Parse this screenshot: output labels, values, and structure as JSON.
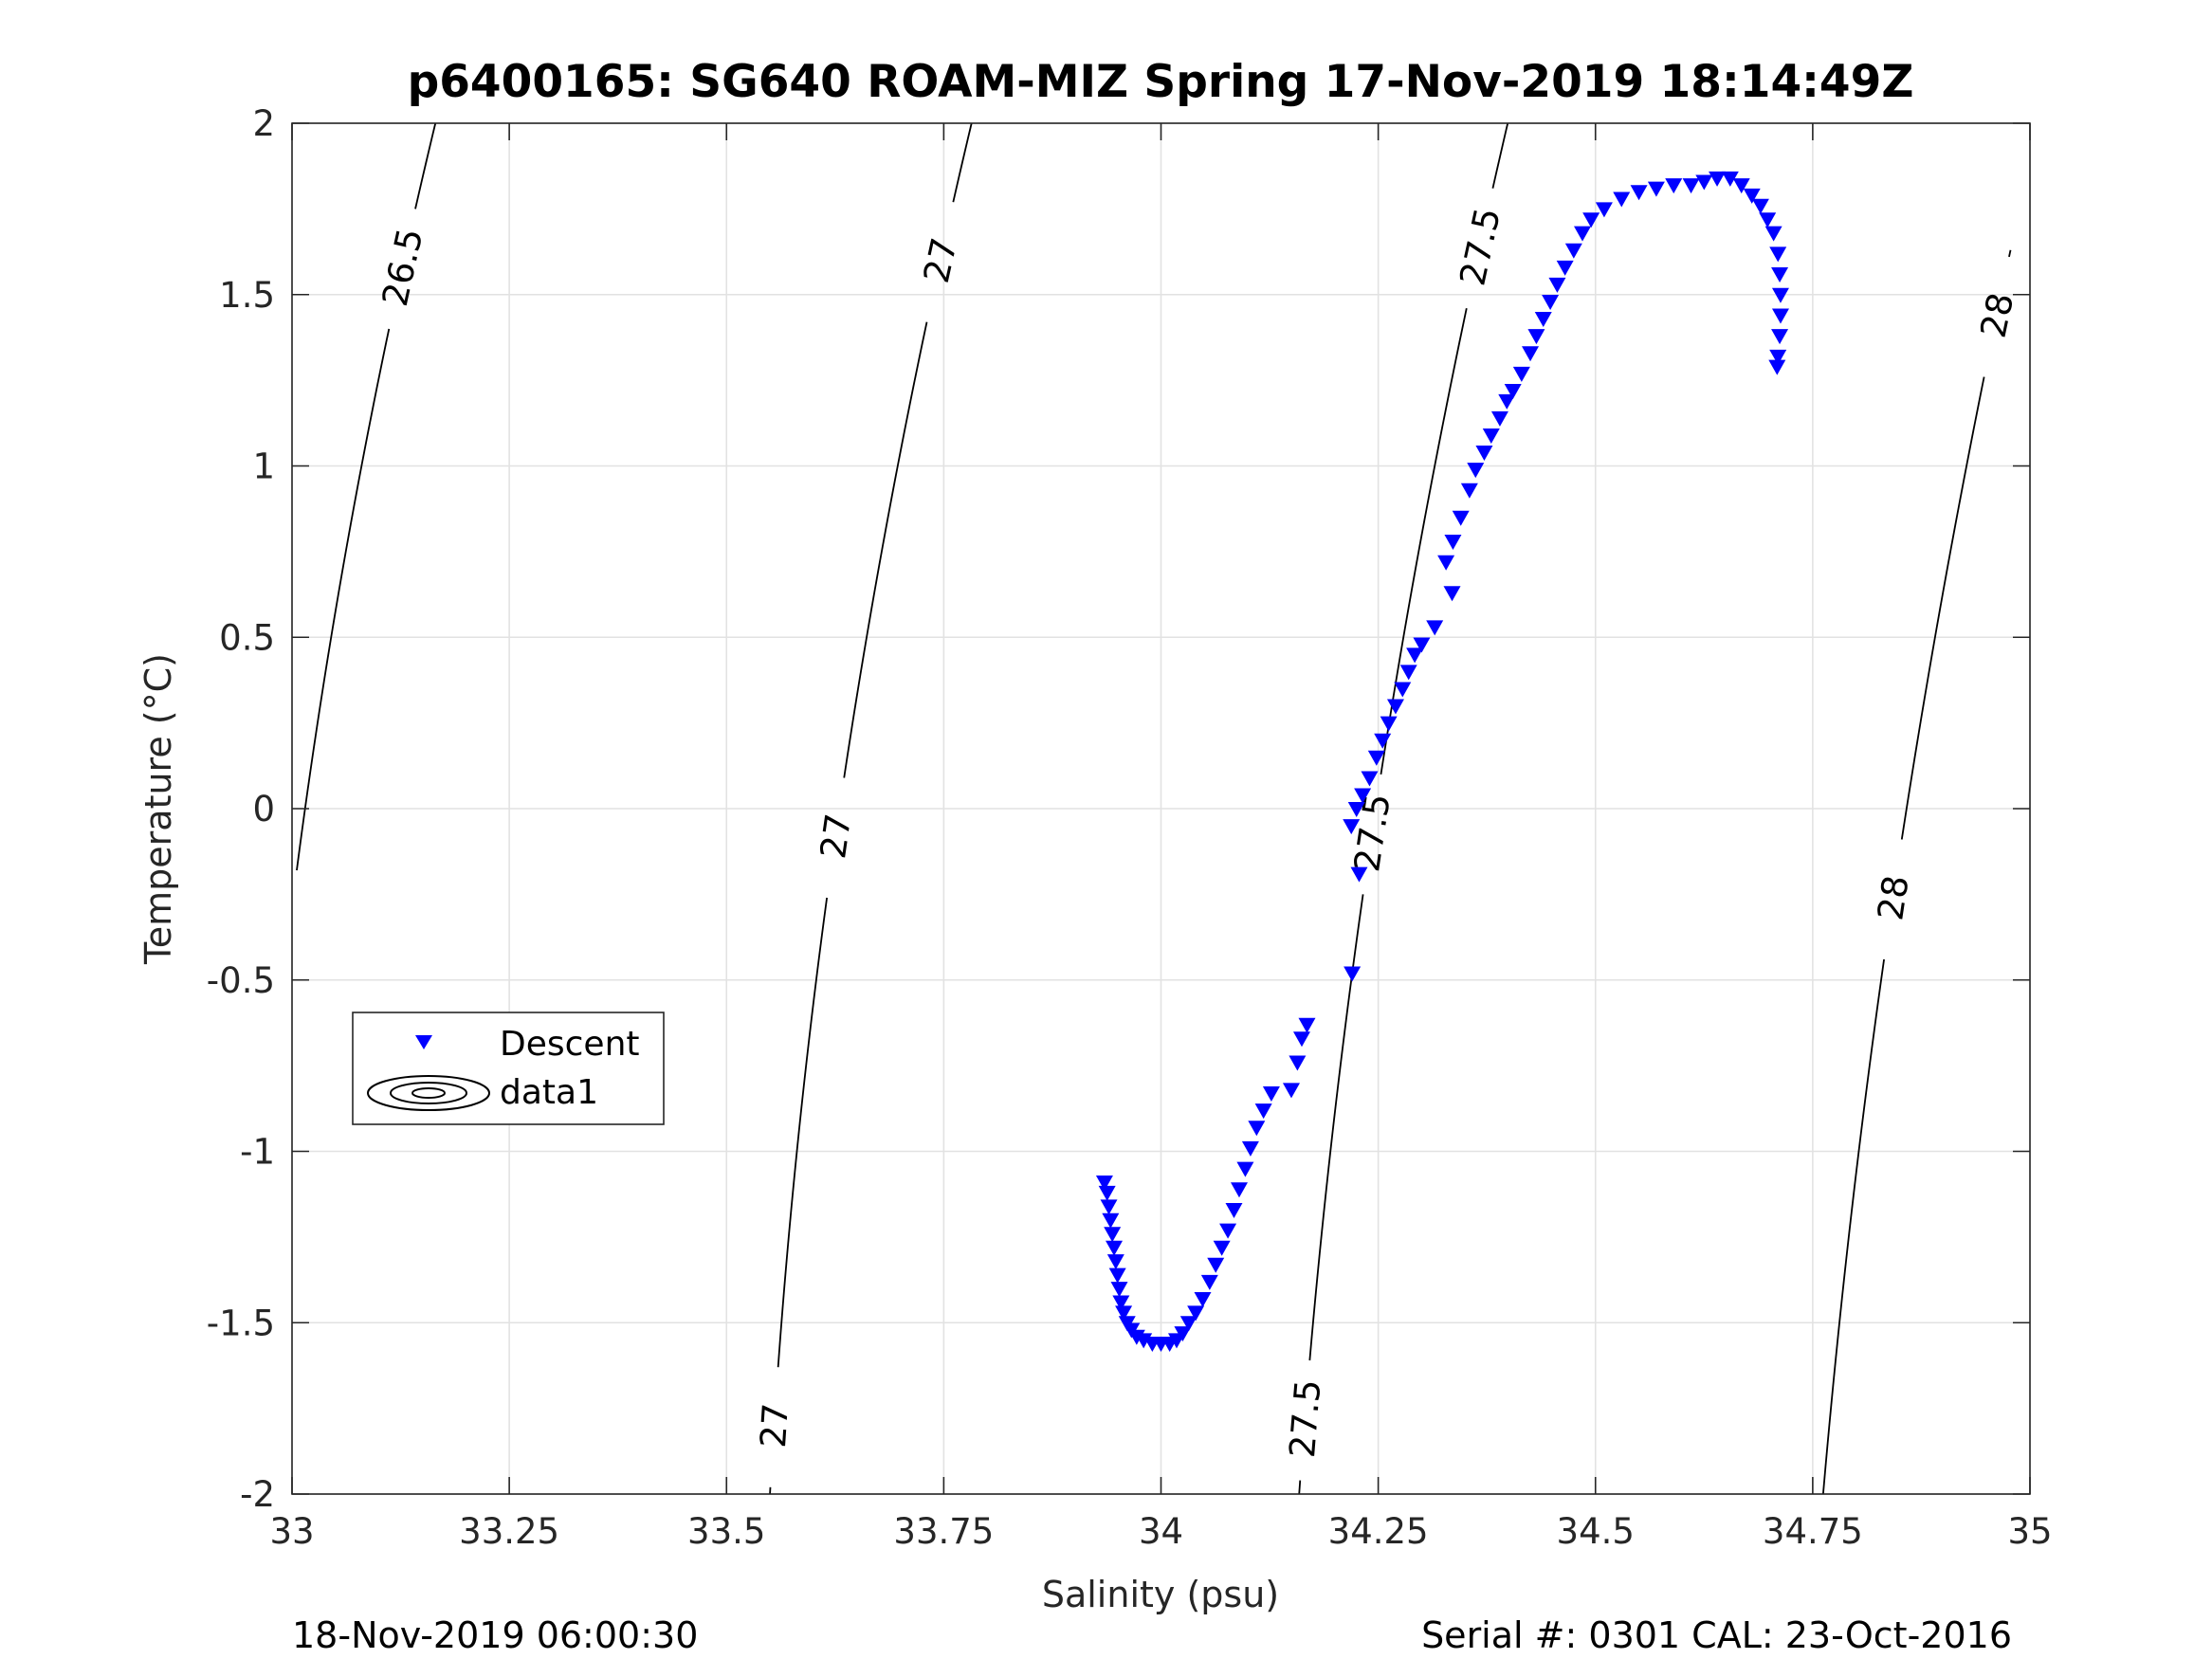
{
  "chart_data": {
    "type": "scatter",
    "title": "p6400165: SG640 ROAM-MIZ Spring 17-Nov-2019 18:14:49Z",
    "xlabel": "Salinity (psu)",
    "ylabel": "Temperature (°C)",
    "xlim": [
      33,
      35
    ],
    "ylim": [
      -2,
      2
    ],
    "xticks": [
      33,
      33.25,
      33.5,
      33.75,
      34,
      34.25,
      34.5,
      34.75,
      35
    ],
    "xtick_labels": [
      "33",
      "33.25",
      "33.5",
      "33.75",
      "34",
      "34.25",
      "34.5",
      "34.75",
      "35"
    ],
    "yticks": [
      -2,
      -1.5,
      -1,
      -0.5,
      0,
      0.5,
      1,
      1.5,
      2
    ],
    "ytick_labels": [
      "-2",
      "-1.5",
      "-1",
      "-0.5",
      "0",
      "0.5",
      "1",
      "1.5",
      "2"
    ],
    "grid": true,
    "legend_position": "lower-left",
    "legend": [
      "Descent",
      "data1"
    ],
    "series": [
      {
        "name": "Descent",
        "marker": "triangle-down",
        "color": "#0000ff",
        "points": [
          [
            33.935,
            -1.09
          ],
          [
            33.938,
            -1.12
          ],
          [
            33.94,
            -1.16
          ],
          [
            33.942,
            -1.2
          ],
          [
            33.944,
            -1.24
          ],
          [
            33.946,
            -1.28
          ],
          [
            33.948,
            -1.32
          ],
          [
            33.95,
            -1.36
          ],
          [
            33.952,
            -1.4
          ],
          [
            33.954,
            -1.44
          ],
          [
            33.957,
            -1.47
          ],
          [
            33.961,
            -1.5
          ],
          [
            33.966,
            -1.52
          ],
          [
            33.972,
            -1.54
          ],
          [
            33.98,
            -1.55
          ],
          [
            33.99,
            -1.56
          ],
          [
            34.0,
            -1.56
          ],
          [
            34.01,
            -1.56
          ],
          [
            34.018,
            -1.55
          ],
          [
            34.025,
            -1.53
          ],
          [
            34.032,
            -1.5
          ],
          [
            34.04,
            -1.47
          ],
          [
            34.048,
            -1.43
          ],
          [
            34.056,
            -1.38
          ],
          [
            34.063,
            -1.33
          ],
          [
            34.07,
            -1.28
          ],
          [
            34.077,
            -1.23
          ],
          [
            34.084,
            -1.17
          ],
          [
            34.09,
            -1.11
          ],
          [
            34.097,
            -1.05
          ],
          [
            34.103,
            -0.99
          ],
          [
            34.11,
            -0.93
          ],
          [
            34.118,
            -0.88
          ],
          [
            34.127,
            -0.83
          ],
          [
            34.15,
            -0.82
          ],
          [
            34.157,
            -0.74
          ],
          [
            34.162,
            -0.67
          ],
          [
            34.168,
            -0.63
          ],
          [
            34.22,
            -0.48
          ],
          [
            34.228,
            -0.19
          ],
          [
            34.219,
            -0.05
          ],
          [
            34.225,
            0.0
          ],
          [
            34.232,
            0.04
          ],
          [
            34.24,
            0.09
          ],
          [
            34.248,
            0.15
          ],
          [
            34.255,
            0.2
          ],
          [
            34.262,
            0.25
          ],
          [
            34.27,
            0.3
          ],
          [
            34.278,
            0.35
          ],
          [
            34.285,
            0.4
          ],
          [
            34.292,
            0.45
          ],
          [
            34.3,
            0.48
          ],
          [
            34.315,
            0.53
          ],
          [
            34.335,
            0.63
          ],
          [
            34.328,
            0.72
          ],
          [
            34.336,
            0.78
          ],
          [
            34.345,
            0.85
          ],
          [
            34.355,
            0.93
          ],
          [
            34.362,
            0.99
          ],
          [
            34.372,
            1.04
          ],
          [
            34.38,
            1.09
          ],
          [
            34.39,
            1.14
          ],
          [
            34.398,
            1.19
          ],
          [
            34.405,
            1.22
          ],
          [
            34.415,
            1.27
          ],
          [
            34.425,
            1.33
          ],
          [
            34.432,
            1.38
          ],
          [
            34.44,
            1.43
          ],
          [
            34.448,
            1.48
          ],
          [
            34.456,
            1.53
          ],
          [
            34.465,
            1.58
          ],
          [
            34.475,
            1.63
          ],
          [
            34.485,
            1.68
          ],
          [
            34.495,
            1.72
          ],
          [
            34.51,
            1.75
          ],
          [
            34.53,
            1.78
          ],
          [
            34.55,
            1.8
          ],
          [
            34.57,
            1.81
          ],
          [
            34.59,
            1.82
          ],
          [
            34.61,
            1.82
          ],
          [
            34.625,
            1.83
          ],
          [
            34.64,
            1.84
          ],
          [
            34.655,
            1.84
          ],
          [
            34.668,
            1.82
          ],
          [
            34.68,
            1.79
          ],
          [
            34.69,
            1.76
          ],
          [
            34.698,
            1.72
          ],
          [
            34.705,
            1.68
          ],
          [
            34.71,
            1.62
          ],
          [
            34.712,
            1.56
          ],
          [
            34.713,
            1.5
          ],
          [
            34.713,
            1.44
          ],
          [
            34.712,
            1.38
          ],
          [
            34.71,
            1.32
          ],
          [
            34.709,
            1.29
          ]
        ]
      }
    ],
    "isopycnals": [
      {
        "sigma": 26.5,
        "labels": [
          "26.5"
        ]
      },
      {
        "sigma": 27.0,
        "labels": [
          "27",
          "27",
          "27"
        ]
      },
      {
        "sigma": 27.5,
        "labels": [
          "27.5",
          "27.5",
          "27.5"
        ]
      },
      {
        "sigma": 28.0,
        "labels": [
          "28",
          "28"
        ]
      }
    ]
  },
  "footer": {
    "left": "18-Nov-2019 06:00:30",
    "right": "Serial #: 0301  CAL: 23-Oct-2016"
  }
}
